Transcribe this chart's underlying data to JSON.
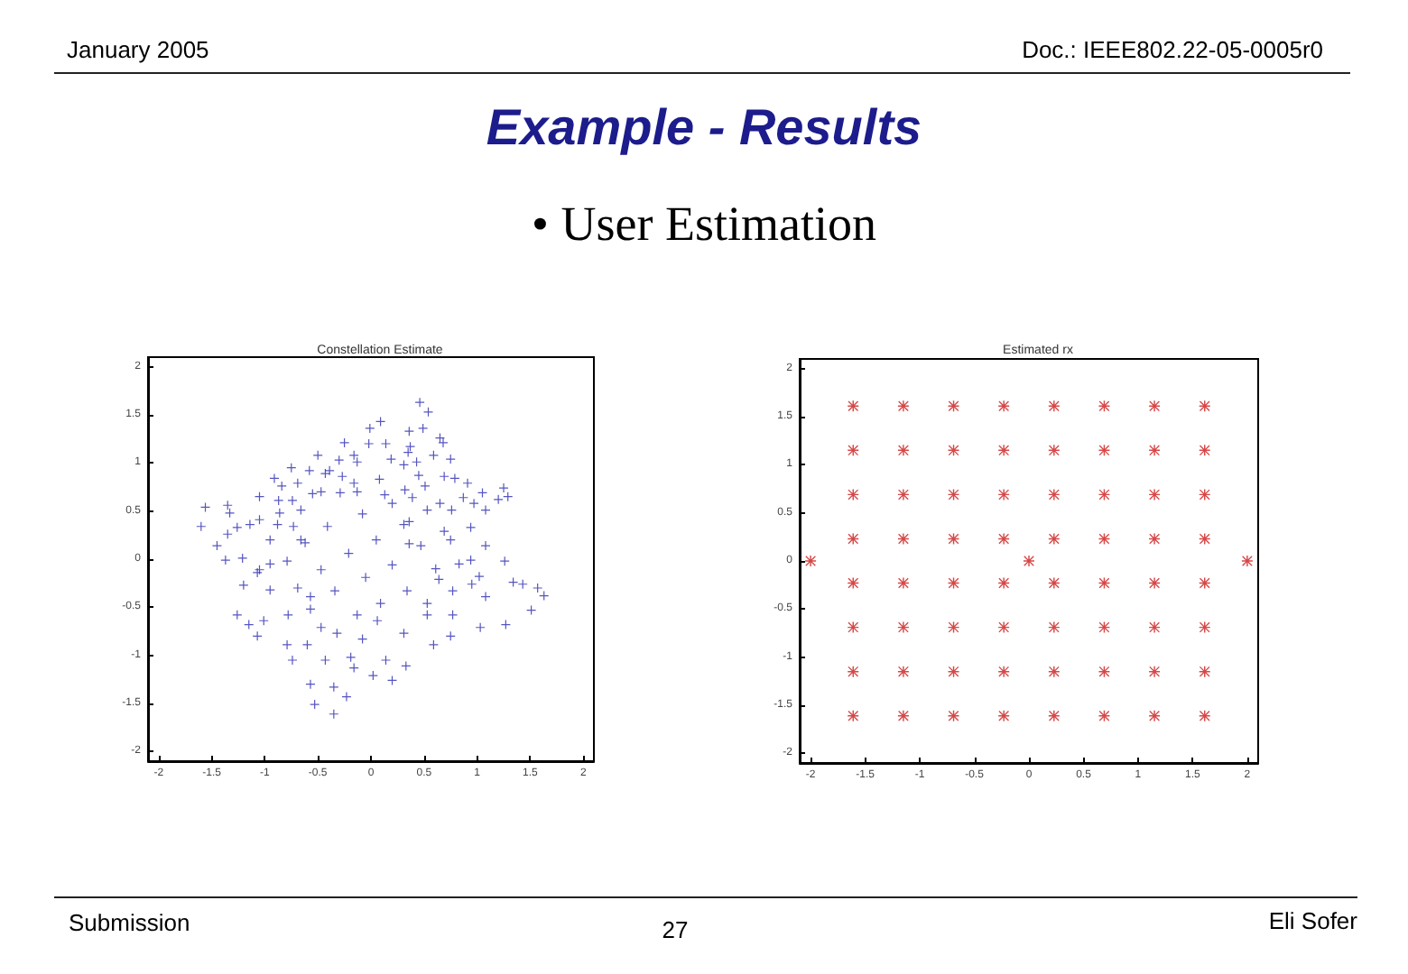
{
  "chart_data": [
    {
      "type": "other",
      "title": "Example - Results",
      "subtitle": "• User Estimation",
      "annotations": [
        "January 2005",
        "Doc.: IEEE802.22-05-0005r0",
        "Submission",
        "27",
        "Eli Sofer"
      ]
    },
    {
      "type": "scatter",
      "title": "Constellation Estimate",
      "color": "#2b2bb0",
      "marker": "cross",
      "xlim": [
        -2.1,
        2.1
      ],
      "ylim": [
        -2.1,
        2.1
      ],
      "xticks": [
        -2,
        -1.5,
        -1,
        -0.5,
        0,
        0.5,
        1,
        1.5,
        2
      ],
      "yticks": [
        -2,
        -1.5,
        -1,
        -0.5,
        0,
        0.5,
        1,
        1.5,
        2
      ],
      "x": [
        0.46,
        0.54,
        0.09,
        -0.01,
        0.36,
        0.49,
        0.65,
        0.68,
        0.37,
        -0.25,
        -0.16,
        -0.02,
        0.14,
        -0.13,
        0.19,
        0.35,
        0.43,
        0.59,
        0.75,
        -0.5,
        -0.39,
        -0.3,
        -0.75,
        -0.58,
        -0.43,
        -0.27,
        -0.16,
        0.08,
        0.31,
        0.45,
        0.51,
        0.69,
        0.79,
        0.91,
        1.05,
        1.25,
        1.29,
        -0.91,
        -0.84,
        -0.69,
        -0.55,
        -1.05,
        -0.87,
        -0.74,
        -0.66,
        -0.47,
        -0.29,
        -0.13,
        0.13,
        0.2,
        0.32,
        0.39,
        0.53,
        0.65,
        0.76,
        0.87,
        0.97,
        1.08,
        1.2,
        -1.56,
        -1.35,
        -1.33,
        -1.6,
        -1.35,
        -1.45,
        -1.26,
        -1.14,
        -1.05,
        -0.95,
        -0.86,
        -0.88,
        -0.73,
        -0.62,
        -0.66,
        -0.41,
        -0.08,
        0.05,
        0.31,
        0.36,
        0.69,
        0.75,
        0.94,
        1.08,
        1.26,
        -1.37,
        -1.21,
        -1.05,
        -0.95,
        -0.79,
        -0.47,
        -0.21,
        0.2,
        0.36,
        0.47,
        0.61,
        0.83,
        0.94,
        1.02,
        -1.2,
        -1.07,
        -0.95,
        -0.69,
        -0.57,
        -0.34,
        -0.05,
        0.09,
        0.34,
        0.53,
        0.64,
        0.77,
        0.95,
        1.08,
        1.34,
        1.43,
        1.57,
        1.63,
        1.51,
        -1.26,
        -1.15,
        -1.01,
        -0.78,
        -0.57,
        -0.47,
        -0.32,
        -0.13,
        0.06,
        0.31,
        0.53,
        0.77,
        1.03,
        1.27,
        -1.07,
        -0.79,
        -0.6,
        -0.19,
        -0.08,
        0.14,
        0.33,
        0.59,
        0.75,
        -0.74,
        -0.43,
        -0.16,
        0.02,
        0.2,
        -0.57,
        -0.35,
        -0.23,
        -0.53,
        -0.35
      ],
      "values": [
        1.63,
        1.53,
        1.43,
        1.36,
        1.33,
        1.36,
        1.26,
        1.21,
        1.17,
        1.21,
        1.08,
        1.2,
        1.2,
        1.01,
        1.04,
        1.11,
        1.01,
        1.08,
        1.04,
        1.08,
        0.92,
        1.03,
        0.95,
        0.92,
        0.89,
        0.86,
        0.79,
        0.83,
        0.98,
        0.87,
        0.76,
        0.86,
        0.84,
        0.79,
        0.69,
        0.74,
        0.65,
        0.84,
        0.76,
        0.79,
        0.68,
        0.65,
        0.61,
        0.61,
        0.51,
        0.7,
        0.69,
        0.7,
        0.67,
        0.58,
        0.72,
        0.64,
        0.51,
        0.58,
        0.51,
        0.64,
        0.58,
        0.51,
        0.62,
        0.54,
        0.56,
        0.48,
        0.34,
        0.26,
        0.14,
        0.33,
        0.36,
        0.41,
        0.2,
        0.48,
        0.36,
        0.34,
        0.17,
        0.2,
        0.34,
        0.47,
        0.2,
        0.36,
        0.39,
        0.29,
        0.2,
        0.33,
        0.14,
        -0.02,
        -0.01,
        0.01,
        -0.11,
        -0.05,
        -0.02,
        -0.11,
        0.06,
        -0.06,
        0.16,
        0.14,
        -0.1,
        -0.05,
        -0.01,
        -0.18,
        -0.27,
        -0.14,
        -0.32,
        -0.3,
        -0.39,
        -0.33,
        -0.19,
        -0.46,
        -0.33,
        -0.46,
        -0.21,
        -0.33,
        -0.26,
        -0.39,
        -0.24,
        -0.26,
        -0.3,
        -0.38,
        -0.53,
        -0.58,
        -0.68,
        -0.64,
        -0.58,
        -0.52,
        -0.71,
        -0.77,
        -0.58,
        -0.64,
        -0.77,
        -0.58,
        -0.58,
        -0.71,
        -0.68,
        -0.8,
        -0.89,
        -0.89,
        -1.02,
        -0.83,
        -1.05,
        -1.11,
        -0.89,
        -0.8,
        -1.05,
        -1.05,
        -1.13,
        -1.21,
        -1.26,
        -1.3,
        -1.33,
        -1.43,
        -1.51,
        -1.61
      ]
    },
    {
      "type": "scatter",
      "title": "Estimated rx",
      "color": "#cc1a1a",
      "marker": "star",
      "xlim": [
        -2.1,
        2.1
      ],
      "ylim": [
        -2.1,
        2.1
      ],
      "xticks": [
        -2,
        -1.5,
        -1,
        -0.5,
        0,
        0.5,
        1,
        1.5,
        2
      ],
      "yticks": [
        -2,
        -1.5,
        -1,
        -0.5,
        0,
        0.5,
        1,
        1.5,
        2
      ],
      "x": [
        -1.61,
        -1.15,
        -0.69,
        -0.23,
        0.23,
        0.69,
        1.15,
        1.61,
        -1.61,
        -1.15,
        -0.69,
        -0.23,
        0.23,
        0.69,
        1.15,
        1.61,
        -1.61,
        -1.15,
        -0.69,
        -0.23,
        0.23,
        0.69,
        1.15,
        1.61,
        -1.61,
        -1.15,
        -0.69,
        -0.23,
        0.23,
        0.69,
        1.15,
        1.61,
        -1.61,
        -1.15,
        -0.69,
        -0.23,
        0.23,
        0.69,
        1.15,
        1.61,
        -1.61,
        -1.15,
        -0.69,
        -0.23,
        0.23,
        0.69,
        1.15,
        1.61,
        -1.61,
        -1.15,
        -0.69,
        -0.23,
        0.23,
        0.69,
        1.15,
        1.61,
        -1.61,
        -1.15,
        -0.69,
        -0.23,
        0.23,
        0.69,
        1.15,
        1.61,
        -2,
        0,
        2
      ],
      "values": [
        1.61,
        1.61,
        1.61,
        1.61,
        1.61,
        1.61,
        1.61,
        1.61,
        1.15,
        1.15,
        1.15,
        1.15,
        1.15,
        1.15,
        1.15,
        1.15,
        0.69,
        0.69,
        0.69,
        0.69,
        0.69,
        0.69,
        0.69,
        0.69,
        0.23,
        0.23,
        0.23,
        0.23,
        0.23,
        0.23,
        0.23,
        0.23,
        -0.23,
        -0.23,
        -0.23,
        -0.23,
        -0.23,
        -0.23,
        -0.23,
        -0.23,
        -0.69,
        -0.69,
        -0.69,
        -0.69,
        -0.69,
        -0.69,
        -0.69,
        -0.69,
        -1.15,
        -1.15,
        -1.15,
        -1.15,
        -1.15,
        -1.15,
        -1.15,
        -1.15,
        -1.61,
        -1.61,
        -1.61,
        -1.61,
        -1.61,
        -1.61,
        -1.61,
        -1.61,
        0,
        0,
        0
      ]
    }
  ]
}
